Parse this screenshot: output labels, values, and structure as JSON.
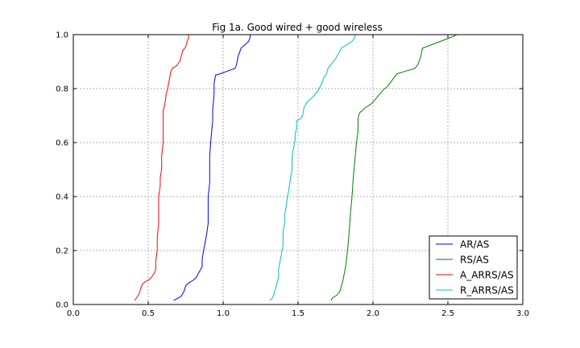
{
  "chart_data": {
    "type": "line",
    "title": "Fig 1a. Good wired + good wireless",
    "xlabel": "",
    "ylabel": "",
    "xlim": [
      0.0,
      3.0
    ],
    "ylim": [
      0.0,
      1.0
    ],
    "xticks": [
      "0.0",
      "0.5",
      "1.0",
      "1.5",
      "2.0",
      "2.5",
      "3.0"
    ],
    "yticks": [
      "0.0",
      "0.2",
      "0.4",
      "0.6",
      "0.8",
      "1.0"
    ],
    "grid": true,
    "legend_position": "lower-right",
    "series": [
      {
        "name": "AR/AS",
        "color": "#0000ff",
        "points": [
          [
            0.67,
            0.015
          ],
          [
            0.72,
            0.03
          ],
          [
            0.74,
            0.05
          ],
          [
            0.75,
            0.07
          ],
          [
            0.77,
            0.08
          ],
          [
            0.8,
            0.09
          ],
          [
            0.82,
            0.1
          ],
          [
            0.84,
            0.12
          ],
          [
            0.85,
            0.13
          ],
          [
            0.86,
            0.14
          ],
          [
            0.86,
            0.17
          ],
          [
            0.87,
            0.2
          ],
          [
            0.88,
            0.23
          ],
          [
            0.89,
            0.26
          ],
          [
            0.9,
            0.3
          ],
          [
            0.9,
            0.4
          ],
          [
            0.91,
            0.45
          ],
          [
            0.91,
            0.55
          ],
          [
            0.92,
            0.62
          ],
          [
            0.93,
            0.68
          ],
          [
            0.93,
            0.72
          ],
          [
            0.94,
            0.78
          ],
          [
            0.94,
            0.82
          ],
          [
            0.95,
            0.85
          ],
          [
            0.98,
            0.855
          ],
          [
            1.03,
            0.865
          ],
          [
            1.08,
            0.875
          ],
          [
            1.09,
            0.89
          ],
          [
            1.1,
            0.92
          ],
          [
            1.12,
            0.95
          ],
          [
            1.15,
            0.965
          ],
          [
            1.17,
            0.975
          ],
          [
            1.18,
            0.99
          ],
          [
            1.18,
            1.0
          ]
        ]
      },
      {
        "name": "RS/AS",
        "color": "#008000",
        "points": [
          [
            1.72,
            0.015
          ],
          [
            1.73,
            0.025
          ],
          [
            1.76,
            0.035
          ],
          [
            1.78,
            0.05
          ],
          [
            1.79,
            0.07
          ],
          [
            1.8,
            0.09
          ],
          [
            1.81,
            0.12
          ],
          [
            1.82,
            0.15
          ],
          [
            1.83,
            0.2
          ],
          [
            1.84,
            0.26
          ],
          [
            1.85,
            0.34
          ],
          [
            1.86,
            0.4
          ],
          [
            1.87,
            0.48
          ],
          [
            1.88,
            0.54
          ],
          [
            1.89,
            0.6
          ],
          [
            1.9,
            0.64
          ],
          [
            1.9,
            0.69
          ],
          [
            1.91,
            0.71
          ],
          [
            1.95,
            0.73
          ],
          [
            1.98,
            0.74
          ],
          [
            2.0,
            0.75
          ],
          [
            2.03,
            0.77
          ],
          [
            2.06,
            0.79
          ],
          [
            2.1,
            0.81
          ],
          [
            2.14,
            0.84
          ],
          [
            2.16,
            0.855
          ],
          [
            2.22,
            0.865
          ],
          [
            2.28,
            0.875
          ],
          [
            2.3,
            0.89
          ],
          [
            2.32,
            0.92
          ],
          [
            2.33,
            0.95
          ],
          [
            2.38,
            0.96
          ],
          [
            2.45,
            0.975
          ],
          [
            2.52,
            0.99
          ],
          [
            2.56,
            1.0
          ]
        ]
      },
      {
        "name": "A_ARRS/AS",
        "color": "#ff0000",
        "points": [
          [
            0.41,
            0.015
          ],
          [
            0.44,
            0.04
          ],
          [
            0.45,
            0.06
          ],
          [
            0.46,
            0.075
          ],
          [
            0.48,
            0.085
          ],
          [
            0.5,
            0.09
          ],
          [
            0.52,
            0.1
          ],
          [
            0.54,
            0.115
          ],
          [
            0.55,
            0.13
          ],
          [
            0.55,
            0.16
          ],
          [
            0.56,
            0.2
          ],
          [
            0.56,
            0.25
          ],
          [
            0.57,
            0.3
          ],
          [
            0.57,
            0.4
          ],
          [
            0.58,
            0.44
          ],
          [
            0.58,
            0.47
          ],
          [
            0.59,
            0.5
          ],
          [
            0.59,
            0.55
          ],
          [
            0.6,
            0.6
          ],
          [
            0.6,
            0.65
          ],
          [
            0.6,
            0.72
          ],
          [
            0.61,
            0.74
          ],
          [
            0.62,
            0.78
          ],
          [
            0.63,
            0.8
          ],
          [
            0.64,
            0.83
          ],
          [
            0.65,
            0.86
          ],
          [
            0.66,
            0.875
          ],
          [
            0.69,
            0.885
          ],
          [
            0.71,
            0.9
          ],
          [
            0.72,
            0.92
          ],
          [
            0.73,
            0.94
          ],
          [
            0.75,
            0.955
          ],
          [
            0.76,
            0.975
          ],
          [
            0.77,
            0.99
          ],
          [
            0.77,
            1.0
          ]
        ]
      },
      {
        "name": "R_ARRS/AS",
        "color": "#00bfbf",
        "points": [
          [
            1.31,
            0.015
          ],
          [
            1.33,
            0.025
          ],
          [
            1.34,
            0.04
          ],
          [
            1.35,
            0.06
          ],
          [
            1.36,
            0.08
          ],
          [
            1.37,
            0.1
          ],
          [
            1.37,
            0.13
          ],
          [
            1.38,
            0.16
          ],
          [
            1.39,
            0.19
          ],
          [
            1.4,
            0.22
          ],
          [
            1.4,
            0.27
          ],
          [
            1.41,
            0.3
          ],
          [
            1.41,
            0.33
          ],
          [
            1.42,
            0.36
          ],
          [
            1.43,
            0.4
          ],
          [
            1.44,
            0.43
          ],
          [
            1.45,
            0.47
          ],
          [
            1.46,
            0.5
          ],
          [
            1.46,
            0.55
          ],
          [
            1.47,
            0.58
          ],
          [
            1.48,
            0.61
          ],
          [
            1.48,
            0.63
          ],
          [
            1.49,
            0.65
          ],
          [
            1.49,
            0.68
          ],
          [
            1.52,
            0.69
          ],
          [
            1.53,
            0.7
          ],
          [
            1.54,
            0.73
          ],
          [
            1.56,
            0.75
          ],
          [
            1.6,
            0.77
          ],
          [
            1.63,
            0.79
          ],
          [
            1.66,
            0.82
          ],
          [
            1.67,
            0.84
          ],
          [
            1.69,
            0.855
          ],
          [
            1.7,
            0.875
          ],
          [
            1.72,
            0.89
          ],
          [
            1.75,
            0.91
          ],
          [
            1.77,
            0.93
          ],
          [
            1.79,
            0.95
          ],
          [
            1.83,
            0.965
          ],
          [
            1.86,
            0.975
          ],
          [
            1.88,
            0.99
          ],
          [
            1.88,
            1.0
          ]
        ]
      }
    ]
  }
}
